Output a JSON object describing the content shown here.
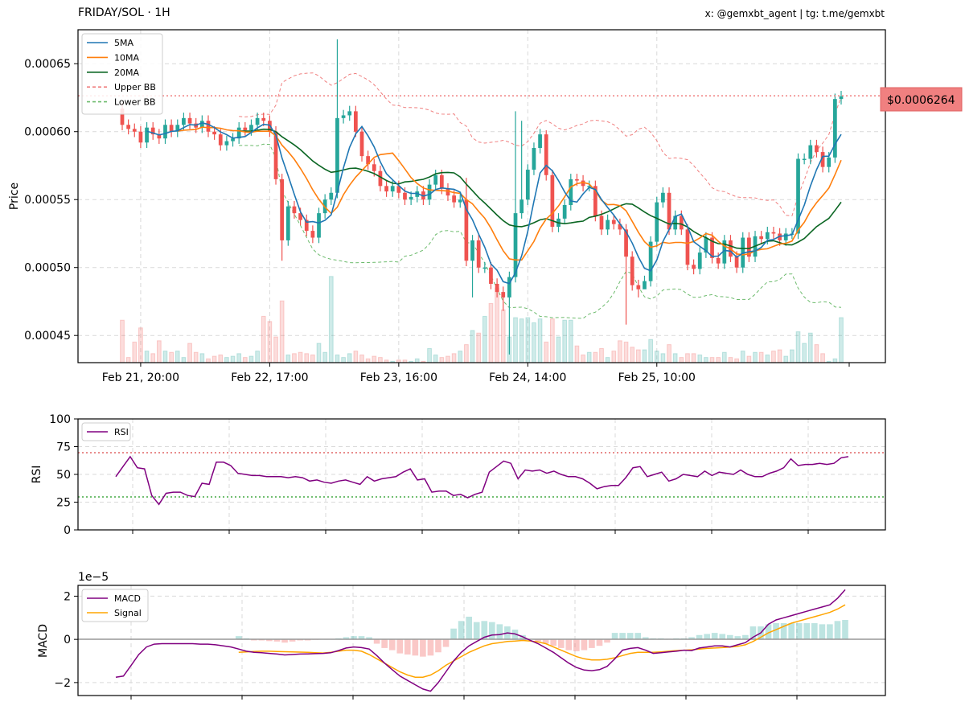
{
  "header": {
    "title": "FRIDAY/SOL · 1H",
    "subtitle": "x: @gemxbt_agent | tg: t.me/gemxbt"
  },
  "colors": {
    "up": "#26a69a",
    "down": "#ef5350",
    "ma5": "#1f77b4",
    "ma10": "#ff7f0e",
    "ma20": "#0b6623",
    "upper_bb": "#f08080",
    "lower_bb": "#6dbb6d",
    "rsi": "#800080",
    "macd": "#800080",
    "signal": "#ffa500",
    "price_tag": "#f08080"
  },
  "chart_data": [
    {
      "type": "candlestick",
      "title": "FRIDAY/SOL · 1H",
      "ylabel": "Price",
      "ylim": [
        0.00043,
        0.000675
      ],
      "yticks": [
        "0.00045",
        "0.00050",
        "0.00055",
        "0.00060",
        "0.00065"
      ],
      "x_tick_labels": [
        "Feb 21, 20:00",
        "Feb 22, 17:00",
        "Feb 23, 16:00",
        "Feb 24, 14:00",
        "Feb 25, 10:00"
      ],
      "x_tick_index": [
        3,
        24,
        45,
        66,
        87
      ],
      "last_price": 0.0006264,
      "last_price_label": "$0.0006264",
      "legend": [
        "5MA",
        "10MA",
        "20MA",
        "Upper BB",
        "Lower BB"
      ],
      "legend_position": "top-left",
      "grid": true,
      "close": [
        0.000605,
        0.000602,
        0.0006,
        0.000592,
        0.000603,
        0.000598,
        0.000595,
        0.000605,
        0.0006,
        0.000605,
        0.00061,
        0.000606,
        0.000603,
        0.000608,
        0.0006,
        0.000598,
        0.00059,
        0.000593,
        0.000595,
        0.000603,
        0.000601,
        0.000605,
        0.00061,
        0.000608,
        0.0006,
        0.000565,
        0.00052,
        0.000545,
        0.00054,
        0.000535,
        0.000527,
        0.000522,
        0.00054,
        0.00055,
        0.000555,
        0.00061,
        0.000612,
        0.000615,
        0.0006,
        0.000582,
        0.000576,
        0.000571,
        0.00056,
        0.000556,
        0.00056,
        0.000555,
        0.00055,
        0.000552,
        0.000556,
        0.00055,
        0.000561,
        0.000568,
        0.000558,
        0.000553,
        0.000548,
        0.00055,
        0.000505,
        0.00052,
        0.0005,
        0.0005,
        0.000488,
        0.000482,
        0.000478,
        0.000493,
        0.00054,
        0.00055,
        0.000572,
        0.000588,
        0.000598,
        0.000568,
        0.00053,
        0.000536,
        0.000546,
        0.000565,
        0.000564,
        0.00056,
        0.00056,
        0.000538,
        0.000528,
        0.000535,
        0.000532,
        0.000528,
        0.000508,
        0.000487,
        0.000484,
        0.00049,
        0.000519,
        0.000548,
        0.000555,
        0.000528,
        0.000538,
        0.000528,
        0.000502,
        0.000499,
        0.000511,
        0.000522,
        0.000507,
        0.000503,
        0.00052,
        0.000508,
        0.0005,
        0.000522,
        0.000508,
        0.000523,
        0.000521,
        0.000526,
        0.000525,
        0.00052,
        0.000525,
        0.000525,
        0.00058,
        0.00058,
        0.00059,
        0.000585,
        0.000574,
        0.000581,
        0.000624,
        0.000626
      ],
      "volume": [
        0.33,
        0.04,
        0.16,
        0.27,
        0.09,
        0.07,
        0.17,
        0.09,
        0.08,
        0.09,
        0.04,
        0.15,
        0.08,
        0.07,
        0.03,
        0.05,
        0.06,
        0.04,
        0.05,
        0.07,
        0.04,
        0.05,
        0.09,
        0.36,
        0.32,
        0.2,
        0.48,
        0.06,
        0.07,
        0.08,
        0.07,
        0.06,
        0.15,
        0.08,
        0.67,
        0.06,
        0.04,
        0.07,
        0.09,
        0.06,
        0.03,
        0.05,
        0.04,
        0.02,
        0.01,
        0.02,
        0.02,
        0.01,
        0.03,
        0.01,
        0.11,
        0.06,
        0.04,
        0.05,
        0.07,
        0.09,
        0.14,
        0.25,
        0.23,
        0.36,
        0.46,
        0.58,
        0.41,
        0.2,
        0.35,
        0.34,
        0.35,
        0.31,
        0.34,
        0.16,
        0.34,
        0.2,
        0.33,
        0.33,
        0.13,
        0.06,
        0.08,
        0.08,
        0.11,
        0.04,
        0.09,
        0.17,
        0.16,
        0.12,
        0.1,
        0.1,
        0.18,
        0.09,
        0.07,
        0.14,
        0.07,
        0.04,
        0.07,
        0.07,
        0.06,
        0.04,
        0.04,
        0.04,
        0.08,
        0.04,
        0.03,
        0.09,
        0.05,
        0.08,
        0.08,
        0.06,
        0.09,
        0.1,
        0.05,
        0.1,
        0.24,
        0.15,
        0.23,
        0.14,
        0.07,
        0.01,
        0.03,
        0.35
      ]
    },
    {
      "type": "line",
      "ylabel": "RSI",
      "ylim": [
        0,
        100
      ],
      "yticks": [
        0,
        25,
        50,
        75,
        100
      ],
      "overbought": 70,
      "oversold": 30,
      "legend": [
        "RSI"
      ],
      "legend_position": "top-left",
      "grid": true,
      "values": [
        48,
        57,
        66,
        56,
        55,
        31,
        23,
        33,
        34,
        34,
        31,
        30,
        42,
        41,
        61,
        61,
        58,
        51,
        50,
        49,
        49,
        48,
        48,
        48,
        47,
        48,
        47,
        44,
        45,
        43,
        42,
        44,
        45,
        43,
        41,
        48,
        44,
        46,
        47,
        48,
        52,
        55,
        45,
        46,
        34,
        35,
        35,
        31,
        32,
        29,
        32,
        34,
        52,
        57,
        62,
        60,
        46,
        54,
        53,
        54,
        51,
        53,
        50,
        48,
        48,
        46,
        42,
        37,
        39,
        40,
        40,
        47,
        56,
        57,
        48,
        50,
        52,
        44,
        46,
        50,
        49,
        48,
        53,
        49,
        52,
        51,
        50,
        54,
        50,
        48,
        48,
        51,
        53,
        56,
        64,
        58,
        59,
        59,
        60,
        59,
        60,
        65,
        66
      ]
    },
    {
      "type": "line",
      "ylabel": "MACD",
      "scale_label": "1e−5",
      "ylim": [
        -2.6,
        2.5
      ],
      "yticks": [
        -2,
        0,
        2
      ],
      "legend": [
        "MACD",
        "Signal"
      ],
      "legend_position": "top-left",
      "grid": true,
      "series": [
        {
          "name": "MACD",
          "values": [
            -1.75,
            -1.7,
            -1.2,
            -0.7,
            -0.35,
            -0.22,
            -0.2,
            -0.2,
            -0.2,
            -0.2,
            -0.2,
            -0.22,
            -0.22,
            -0.25,
            -0.3,
            -0.35,
            -0.45,
            -0.55,
            -0.6,
            -0.62,
            -0.65,
            -0.68,
            -0.72,
            -0.7,
            -0.68,
            -0.67,
            -0.66,
            -0.65,
            -0.62,
            -0.52,
            -0.4,
            -0.35,
            -0.38,
            -0.45,
            -0.75,
            -1.1,
            -1.4,
            -1.7,
            -1.9,
            -2.1,
            -2.3,
            -2.4,
            -2.0,
            -1.5,
            -1.0,
            -0.6,
            -0.3,
            -0.1,
            0.1,
            0.2,
            0.22,
            0.3,
            0.25,
            0.12,
            -0.05,
            -0.2,
            -0.4,
            -0.6,
            -0.85,
            -1.1,
            -1.3,
            -1.42,
            -1.45,
            -1.4,
            -1.25,
            -0.9,
            -0.5,
            -0.42,
            -0.38,
            -0.5,
            -0.65,
            -0.62,
            -0.58,
            -0.55,
            -0.5,
            -0.52,
            -0.4,
            -0.35,
            -0.3,
            -0.3,
            -0.35,
            -0.25,
            -0.15,
            0.1,
            0.3,
            0.7,
            0.9,
            1.0,
            1.1,
            1.2,
            1.3,
            1.4,
            1.5,
            1.6,
            1.9,
            2.3
          ]
        },
        {
          "name": "Signal",
          "values": [
            null,
            null,
            null,
            null,
            null,
            null,
            null,
            null,
            null,
            null,
            null,
            null,
            null,
            null,
            null,
            null,
            -0.6,
            -0.58,
            -0.56,
            -0.55,
            -0.55,
            -0.56,
            -0.57,
            -0.58,
            -0.59,
            -0.6,
            -0.62,
            -0.63,
            -0.6,
            -0.55,
            -0.5,
            -0.5,
            -0.55,
            -0.7,
            -0.9,
            -1.1,
            -1.3,
            -1.5,
            -1.65,
            -1.75,
            -1.75,
            -1.65,
            -1.45,
            -1.2,
            -1.0,
            -0.8,
            -0.6,
            -0.45,
            -0.3,
            -0.2,
            -0.15,
            -0.1,
            -0.08,
            -0.05,
            -0.08,
            -0.12,
            -0.2,
            -0.35,
            -0.5,
            -0.65,
            -0.8,
            -0.9,
            -0.95,
            -0.95,
            -0.92,
            -0.85,
            -0.75,
            -0.65,
            -0.6,
            -0.6,
            -0.6,
            -0.58,
            -0.55,
            -0.52,
            -0.5,
            -0.48,
            -0.45,
            -0.42,
            -0.4,
            -0.38,
            -0.36,
            -0.32,
            -0.25,
            -0.1,
            0.1,
            0.3,
            0.45,
            0.6,
            0.75,
            0.85,
            0.95,
            1.05,
            1.15,
            1.25,
            1.4,
            1.6
          ]
        },
        {
          "name": "Histogram",
          "values": [
            null,
            null,
            null,
            null,
            null,
            null,
            null,
            null,
            null,
            null,
            null,
            null,
            null,
            null,
            null,
            null,
            0.15,
            0.05,
            -0.05,
            -0.05,
            -0.08,
            -0.1,
            -0.15,
            -0.1,
            -0.05,
            -0.05,
            -0.02,
            0.0,
            0.0,
            0.05,
            0.1,
            0.15,
            0.15,
            0.1,
            -0.2,
            -0.4,
            -0.5,
            -0.65,
            -0.7,
            -0.75,
            -0.8,
            -0.75,
            -0.6,
            -0.35,
            0.5,
            0.85,
            1.05,
            0.8,
            0.85,
            0.8,
            0.7,
            0.6,
            0.45,
            0.2,
            0.0,
            -0.1,
            -0.2,
            -0.3,
            -0.4,
            -0.5,
            -0.55,
            -0.5,
            -0.4,
            -0.3,
            -0.15,
            0.3,
            0.3,
            0.3,
            0.3,
            0.1,
            0.05,
            0.05,
            0.03,
            0.05,
            0.05,
            0.1,
            0.2,
            0.25,
            0.3,
            0.25,
            0.2,
            0.15,
            0.2,
            0.6,
            0.6,
            0.7,
            0.75,
            0.75,
            0.75,
            0.75,
            0.75,
            0.75,
            0.7,
            0.7,
            0.85,
            0.9
          ]
        }
      ]
    }
  ]
}
